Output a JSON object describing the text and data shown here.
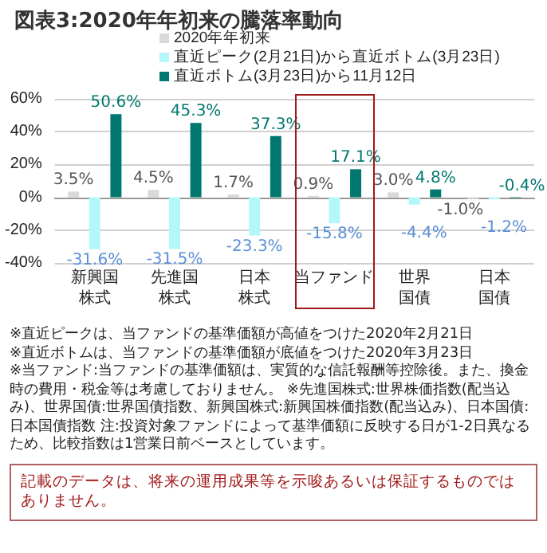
{
  "chart_data": {
    "type": "bar",
    "title": "図表3:2020年年初来の騰落率動向",
    "categories": [
      "新興国株式",
      "先進国株式",
      "日本株式",
      "当ファンド",
      "世界国債",
      "日本国債"
    ],
    "series": [
      {
        "name": "2020年年初来",
        "color": "#d9d9d9",
        "values": [
          3.5,
          4.5,
          1.7,
          0.9,
          3.0,
          -1.0
        ],
        "value_labels": [
          "3.5%",
          "4.5%",
          "1.7%",
          "0.9%",
          "3.0%",
          "-1.0%"
        ]
      },
      {
        "name": "直近ピーク(2月21日)から直近ボトム(3月23日)",
        "color": "#b3f7fa",
        "values": [
          -31.6,
          -31.5,
          -23.3,
          -15.8,
          -4.4,
          -1.2
        ],
        "value_labels": [
          "-31.6%",
          "-31.5%",
          "-23.3%",
          "-15.8%",
          "-4.4%",
          "-1.2%"
        ]
      },
      {
        "name": "直近ボトム(3月23日)から11月12日",
        "color": "#007870",
        "values": [
          50.6,
          45.3,
          37.3,
          17.1,
          4.8,
          -0.4
        ],
        "value_labels": [
          "50.6%",
          "45.3%",
          "37.3%",
          "17.1%",
          "4.8%",
          "-0.4%"
        ]
      }
    ],
    "ylim": [
      -40,
      60
    ],
    "yticks": [
      {
        "value": -40,
        "label": "-40%"
      },
      {
        "value": -20,
        "label": "-20%"
      },
      {
        "value": 0,
        "label": "0%"
      },
      {
        "value": 20,
        "label": "20%"
      },
      {
        "value": 40,
        "label": "40%"
      },
      {
        "value": 60,
        "label": "60%"
      }
    ],
    "grid": "y",
    "legend": "top",
    "annotations": [
      "※直近ピークは、当ファンドの基準価額が高値をつけた2020年2月21日",
      "※直近ボトムは、当ファンドの基準価額が底値をつけた2020年3月23日",
      "※当ファンド:当ファンドの基準価額は、実質的な信託報酬等控除後。また、換金時の費用・税金等は考慮しておりません。 ※先進国株式:世界株価指数(配当込み)、世界国債:世界国債指数、新興国株式:新興国株価指数(配当込み)、日本国債:日本国債指数 注:投資対象ファンドによって基準価額に反映する日が1-2日異なるため、比較指数は1営業日前ベースとしています。",
      "記載のデータは、将来の運用成果等を示唆あるいは保証するものではありません。"
    ]
  }
}
